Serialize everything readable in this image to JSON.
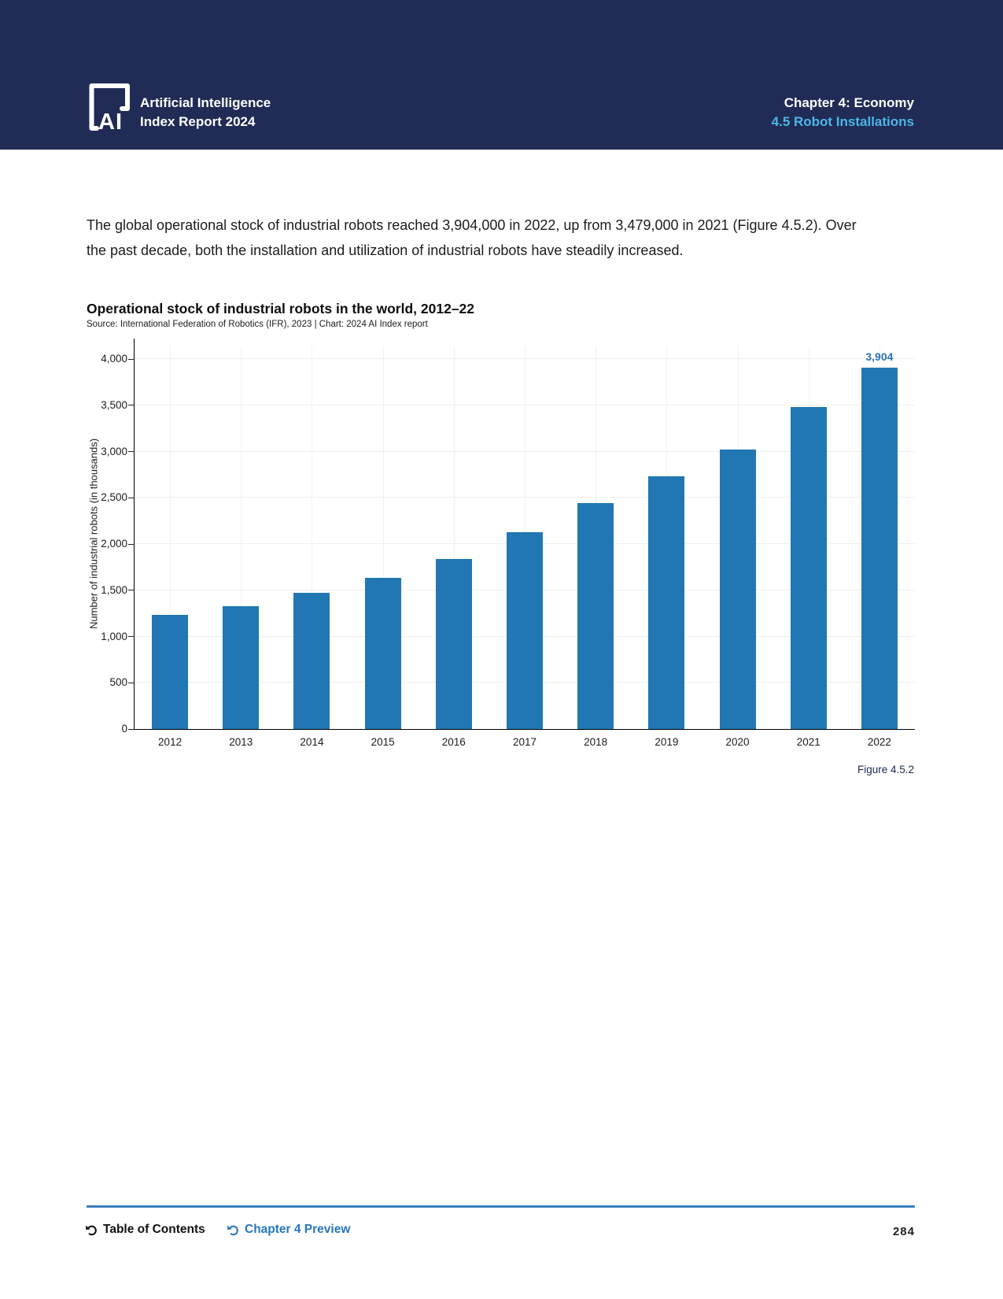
{
  "header": {
    "logo_text": "AI",
    "brand_line1": "Artificial Intelligence",
    "brand_line2": "Index Report 2024",
    "chapter": "Chapter 4: Economy",
    "section": "4.5 Robot Installations"
  },
  "body_text": "The global operational stock of industrial robots reached 3,904,000 in 2022, up from 3,479,000 in 2021 (Figure 4.5.2). Over the past decade, both the installation and utilization of industrial robots have steadily increased.",
  "chart": {
    "title": "Operational stock of industrial robots in the world, 2012–22",
    "source": "Source: International Federation of Robotics (IFR), 2023 | Chart: 2024 AI Index report",
    "figure_label": "Figure 4.5.2"
  },
  "chart_data": {
    "type": "bar",
    "title": "Operational stock of industrial robots in the world, 2012–22",
    "xlabel": "",
    "ylabel": "Number of industrial robots (in thousands)",
    "categories": [
      "2012",
      "2013",
      "2014",
      "2015",
      "2016",
      "2017",
      "2018",
      "2019",
      "2020",
      "2021",
      "2022"
    ],
    "values": [
      1235,
      1332,
      1472,
      1632,
      1840,
      2125,
      2440,
      2728,
      3024,
      3479,
      3904
    ],
    "value_labels": [
      "",
      "",
      "",
      "",
      "",
      "",
      "",
      "",
      "",
      "",
      "3,904"
    ],
    "ylim": [
      0,
      4000
    ],
    "yticks": [
      0,
      500,
      1000,
      1500,
      2000,
      2500,
      3000,
      3500,
      4000
    ],
    "ytick_labels": [
      "0",
      "500",
      "1,000",
      "1,500",
      "2,000",
      "2,500",
      "3,000",
      "3,500",
      "4,000"
    ],
    "grid": true,
    "legend": "none",
    "bar_color": "#2077b4"
  },
  "colors": {
    "header_bg": "#202c55",
    "accent_light_blue": "#4cb6e8",
    "bar_blue": "#2077b4",
    "value_label_blue": "#2a72b5",
    "link_blue": "#2677bd",
    "figure_navy": "#1b2a52"
  },
  "footer": {
    "toc_label": "Table of Contents",
    "preview_label": "Chapter 4 Preview",
    "page_number": "284"
  }
}
